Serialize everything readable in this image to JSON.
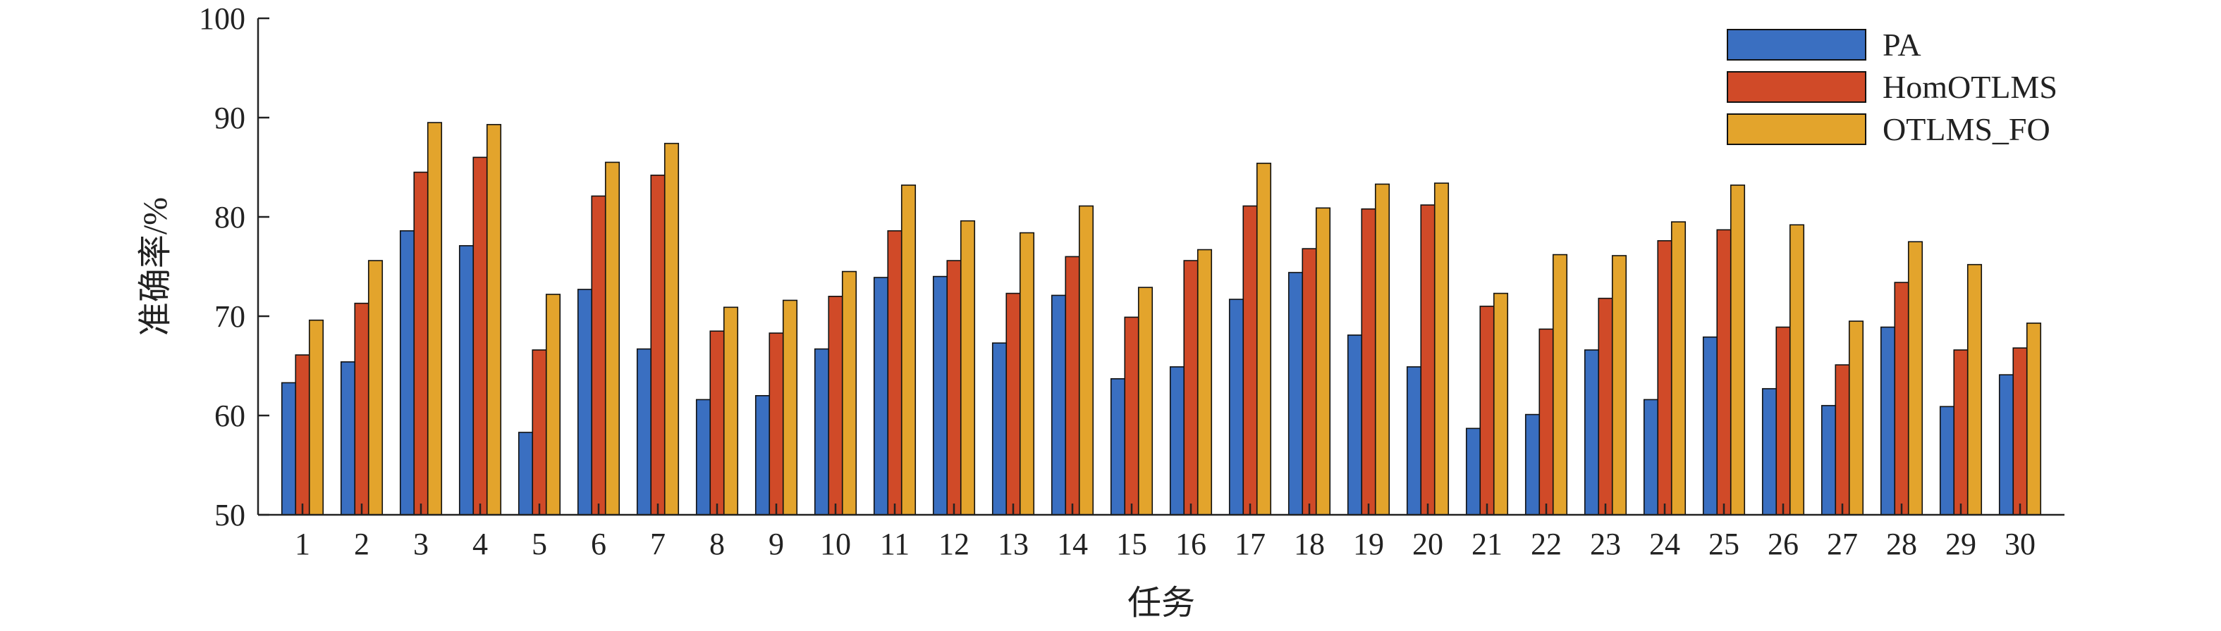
{
  "chart_data": {
    "type": "bar",
    "title": "",
    "xlabel": "任务",
    "ylabel": "准确率/%",
    "ylim": [
      50,
      100
    ],
    "yticks": [
      50,
      60,
      70,
      80,
      90,
      100
    ],
    "grid": false,
    "legend_position": "top-right",
    "categories": [
      "1",
      "2",
      "3",
      "4",
      "5",
      "6",
      "7",
      "8",
      "9",
      "10",
      "11",
      "12",
      "13",
      "14",
      "15",
      "16",
      "17",
      "18",
      "19",
      "20",
      "21",
      "22",
      "23",
      "24",
      "25",
      "26",
      "27",
      "28",
      "29",
      "30"
    ],
    "series": [
      {
        "name": "PA",
        "color": "#3a6fc1",
        "values": [
          63.3,
          65.4,
          78.6,
          77.1,
          58.3,
          72.7,
          66.7,
          61.6,
          62.0,
          66.7,
          73.9,
          74.0,
          67.3,
          72.1,
          63.7,
          64.9,
          71.7,
          74.4,
          68.1,
          64.9,
          58.7,
          60.1,
          66.6,
          61.6,
          67.9,
          62.7,
          61.0,
          68.9,
          60.9,
          64.1
        ]
      },
      {
        "name": "HomOTLMS",
        "color": "#d04a28",
        "values": [
          66.1,
          71.3,
          84.5,
          86.0,
          66.6,
          82.1,
          84.2,
          68.5,
          68.3,
          72.0,
          78.6,
          75.6,
          72.3,
          76.0,
          69.9,
          75.6,
          81.1,
          76.8,
          80.8,
          81.2,
          71.0,
          68.7,
          71.8,
          77.6,
          78.7,
          68.9,
          65.1,
          73.4,
          66.6,
          66.8
        ]
      },
      {
        "name": "OTLMS_FO",
        "color": "#e3a42c",
        "values": [
          69.6,
          75.6,
          89.5,
          89.3,
          72.2,
          85.5,
          87.4,
          70.9,
          71.6,
          74.5,
          83.2,
          79.6,
          78.4,
          81.1,
          72.9,
          76.7,
          85.4,
          80.9,
          83.3,
          83.4,
          72.3,
          76.2,
          76.1,
          79.5,
          83.2,
          79.2,
          69.5,
          77.5,
          75.2,
          69.3
        ]
      }
    ]
  }
}
